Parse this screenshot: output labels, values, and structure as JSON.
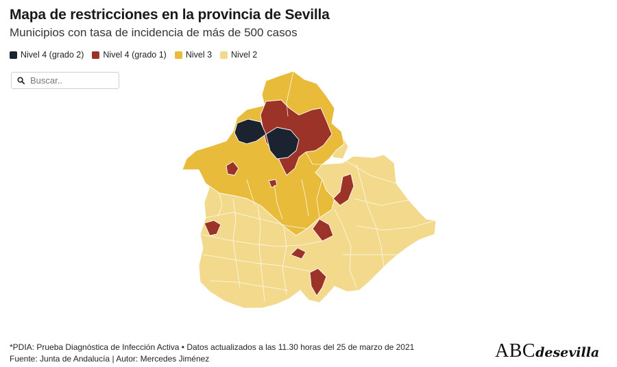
{
  "header": {
    "title": "Mapa de restricciones en la provincia de Sevilla",
    "subtitle": "Municipios con tasa de incidencia de más de 500 casos"
  },
  "legend": [
    {
      "label": "Nivel 4 (grado 2)",
      "color": "#1b2330"
    },
    {
      "label": "Nivel 4 (grado 1)",
      "color": "#9b3328"
    },
    {
      "label": "Nivel 3",
      "color": "#e9bb3a"
    },
    {
      "label": "Nivel 2",
      "color": "#f2d98b"
    }
  ],
  "search": {
    "placeholder": "Buscar.."
  },
  "footer": {
    "line1": "*PDIA: Prueba Diagnóstica de Infección Activa • Datos actualizados a las 11.30 horas del 25 de marzo de 2021",
    "line2": "Fuente: Junta de Andalucía | Autor: Mercedes Jiménez"
  },
  "logo": {
    "main": "ABC",
    "brand": "desevilla"
  },
  "colors": {
    "nivel4g2": "#1b2330",
    "nivel4g1": "#9b3328",
    "nivel3": "#e9bb3a",
    "nivel2": "#f2d98b",
    "border": "#ffffff"
  }
}
